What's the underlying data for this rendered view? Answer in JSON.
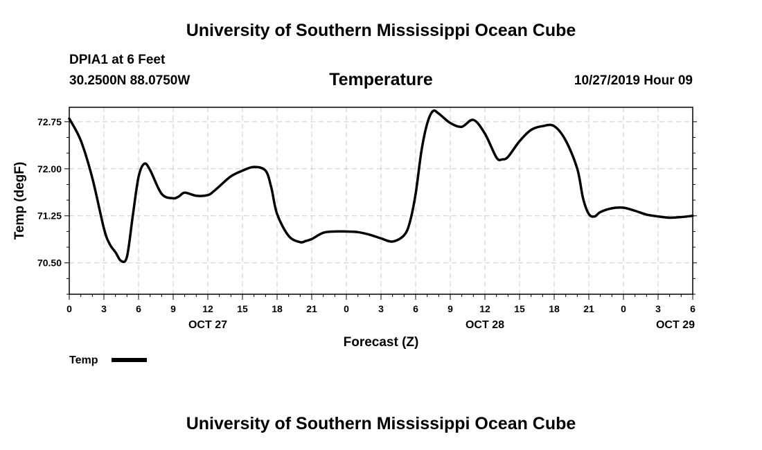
{
  "header": {
    "title": "University of Southern Mississippi Ocean Cube",
    "station": "DPIA1 at 6 Feet",
    "coords": "30.2500N 88.0750W",
    "run": "10/27/2019 Hour 09"
  },
  "footer": {
    "title": "University of Southern Mississippi Ocean Cube"
  },
  "colors": {
    "line": "#000000",
    "grid": "#c8c8c8",
    "frame": "#000000"
  },
  "chart_data": {
    "type": "line",
    "title": "Temperature",
    "xlabel": "Forecast (Z)",
    "ylabel": "Temp (degF)",
    "xlim": [
      0,
      54
    ],
    "ylim": [
      70.0,
      72.98
    ],
    "yticks": [
      70.5,
      71.25,
      72.0,
      72.75
    ],
    "ytick_labels": [
      "70.50",
      "71.25",
      "72.00",
      "72.75"
    ],
    "xticks": [
      0,
      3,
      6,
      9,
      12,
      15,
      18,
      21,
      24,
      27,
      30,
      33,
      36,
      39,
      42,
      45,
      48,
      51,
      54
    ],
    "xtick_labels": [
      "0",
      "3",
      "6",
      "9",
      "12",
      "15",
      "18",
      "21",
      "0",
      "3",
      "6",
      "9",
      "12",
      "15",
      "18",
      "21",
      "0",
      "3",
      "6"
    ],
    "date_labels": [
      {
        "x": 12,
        "label": "OCT 27"
      },
      {
        "x": 36,
        "label": "OCT 28"
      },
      {
        "x": 52.5,
        "label": "OCT 29"
      }
    ],
    "grid": true,
    "legend": {
      "label": "Temp",
      "placement": "bottom-left"
    },
    "series": [
      {
        "name": "Temp",
        "x": [
          0,
          1,
          2,
          3,
          3.5,
          4,
          4.5,
          5,
          5.5,
          6,
          6.5,
          7,
          8,
          9,
          9.5,
          10,
          11,
          12,
          12.5,
          13,
          14,
          15,
          16,
          17,
          17.5,
          18,
          19,
          20,
          20.5,
          21,
          22,
          23,
          24,
          25,
          26,
          27,
          28,
          29,
          29.5,
          30,
          30.5,
          31,
          31.5,
          32,
          33,
          34,
          35,
          36,
          37,
          37.5,
          38,
          39,
          40,
          41,
          42,
          43,
          44,
          44.5,
          45,
          45.5,
          46,
          47,
          48,
          49,
          50,
          51,
          52,
          53,
          54
        ],
        "y": [
          72.8,
          72.45,
          71.85,
          71.05,
          70.8,
          70.67,
          70.53,
          70.6,
          71.25,
          71.87,
          72.08,
          71.98,
          71.6,
          71.53,
          71.56,
          71.62,
          71.57,
          71.58,
          71.64,
          71.72,
          71.88,
          71.97,
          72.03,
          71.97,
          71.7,
          71.28,
          70.93,
          70.83,
          70.85,
          70.88,
          70.98,
          71.0,
          71.0,
          70.99,
          70.95,
          70.89,
          70.84,
          70.94,
          71.15,
          71.6,
          72.28,
          72.72,
          72.92,
          72.88,
          72.73,
          72.67,
          72.78,
          72.56,
          72.18,
          72.15,
          72.19,
          72.44,
          72.62,
          72.68,
          72.68,
          72.45,
          72.0,
          71.53,
          71.28,
          71.24,
          71.31,
          71.37,
          71.38,
          71.33,
          71.27,
          71.24,
          71.22,
          71.23,
          71.25
        ]
      }
    ]
  }
}
